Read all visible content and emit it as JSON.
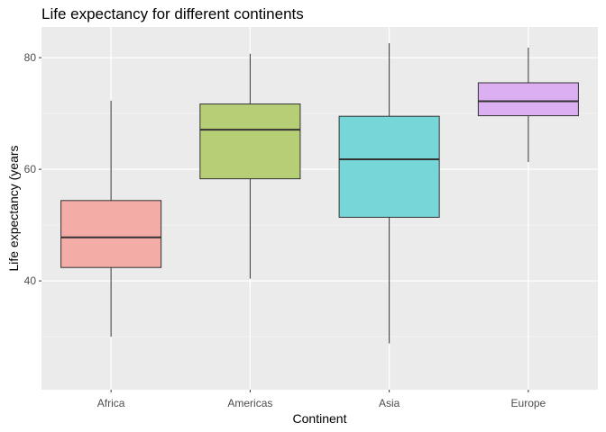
{
  "chart_data": {
    "type": "boxplot",
    "title": "Life expectancy for different continents",
    "xlabel": "Continent",
    "ylabel": "Life expectancy (years",
    "ylim": [
      20.5,
      85.5
    ],
    "yticks": [
      40,
      60,
      80
    ],
    "y_minor_ticks": [
      30,
      50,
      70
    ],
    "grid": true,
    "categories": [
      "Africa",
      "Americas",
      "Asia",
      "Europe"
    ],
    "colors": [
      "#f3aca6",
      "#b6cf77",
      "#77d6d8",
      "#dcaff2"
    ],
    "boxes": [
      {
        "category": "Africa",
        "min": 30.0,
        "q1": 42.4,
        "median": 47.8,
        "q3": 54.4,
        "max": 72.3
      },
      {
        "category": "Americas",
        "min": 40.4,
        "q1": 58.3,
        "median": 67.1,
        "q3": 71.7,
        "max": 80.7
      },
      {
        "category": "Asia",
        "min": 28.8,
        "q1": 51.4,
        "median": 61.8,
        "q3": 69.5,
        "max": 82.6
      },
      {
        "category": "Europe",
        "min": 61.3,
        "q1": 69.6,
        "median": 72.2,
        "q3": 75.5,
        "max": 81.8
      }
    ]
  }
}
